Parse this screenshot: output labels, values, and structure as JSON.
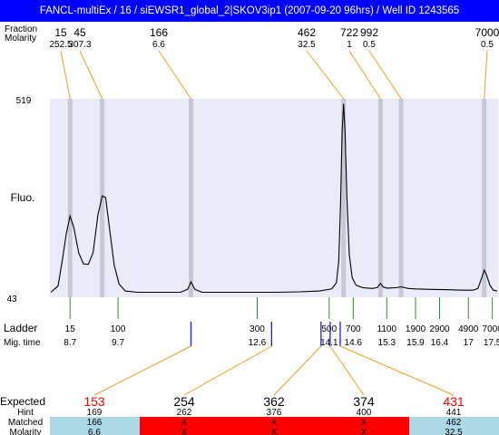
{
  "header": {
    "title": "FANCL-multiEx / 16 / siEWSR1_global_2|SKOV3ip1 (2007-09-20 96hrs) / Well ID 1243565",
    "row1_label": "Fraction",
    "row2_label": "Molarity"
  },
  "chart_data": {
    "type": "line",
    "ylabel": "Fluo.",
    "ylim": [
      43,
      519
    ],
    "ytick_labels": [
      "519",
      "43"
    ],
    "top_fragments": [
      {
        "size": "15",
        "molarity": "252.5"
      },
      {
        "size": "45",
        "molarity": "307.3"
      },
      {
        "size": "166",
        "molarity": "6.6"
      },
      {
        "size": "462",
        "molarity": "32.5"
      },
      {
        "size": "722",
        "molarity": "1"
      },
      {
        "size": "992",
        "molarity": "0.5"
      },
      {
        "size": "7000",
        "molarity": "0.5"
      }
    ],
    "ladder_label": "Ladder",
    "migtime_label": "Mig. time",
    "ladder": [
      {
        "size": "15",
        "time": "8.7"
      },
      {
        "size": "100",
        "time": "9.7"
      },
      {
        "size": "300",
        "time": "12.6"
      },
      {
        "size": "500",
        "time": "14.1"
      },
      {
        "size": "700",
        "time": "14.6"
      },
      {
        "size": "1100",
        "time": "15.3"
      },
      {
        "size": "1900",
        "time": "15.9"
      },
      {
        "size": "2900",
        "time": "16.4"
      },
      {
        "size": "4900",
        "time": "17"
      },
      {
        "size": "7000",
        "time": "17.5"
      }
    ],
    "trace": [
      {
        "x": 8.3,
        "y": 55
      },
      {
        "x": 8.45,
        "y": 70
      },
      {
        "x": 8.55,
        "y": 140
      },
      {
        "x": 8.62,
        "y": 195
      },
      {
        "x": 8.7,
        "y": 238
      },
      {
        "x": 8.78,
        "y": 210
      },
      {
        "x": 8.88,
        "y": 150
      },
      {
        "x": 8.98,
        "y": 123
      },
      {
        "x": 9.08,
        "y": 122
      },
      {
        "x": 9.18,
        "y": 150
      },
      {
        "x": 9.28,
        "y": 240
      },
      {
        "x": 9.37,
        "y": 286
      },
      {
        "x": 9.44,
        "y": 282
      },
      {
        "x": 9.52,
        "y": 210
      },
      {
        "x": 9.62,
        "y": 120
      },
      {
        "x": 9.72,
        "y": 75
      },
      {
        "x": 9.85,
        "y": 58
      },
      {
        "x": 10.1,
        "y": 55
      },
      {
        "x": 10.6,
        "y": 55
      },
      {
        "x": 11.0,
        "y": 55
      },
      {
        "x": 11.15,
        "y": 62
      },
      {
        "x": 11.22,
        "y": 80
      },
      {
        "x": 11.3,
        "y": 62
      },
      {
        "x": 11.45,
        "y": 55
      },
      {
        "x": 12.0,
        "y": 55
      },
      {
        "x": 13.0,
        "y": 55
      },
      {
        "x": 13.5,
        "y": 56
      },
      {
        "x": 13.9,
        "y": 58
      },
      {
        "x": 14.15,
        "y": 63
      },
      {
        "x": 14.25,
        "y": 78
      },
      {
        "x": 14.3,
        "y": 130
      },
      {
        "x": 14.34,
        "y": 280
      },
      {
        "x": 14.37,
        "y": 440
      },
      {
        "x": 14.4,
        "y": 507
      },
      {
        "x": 14.43,
        "y": 440
      },
      {
        "x": 14.47,
        "y": 280
      },
      {
        "x": 14.52,
        "y": 145
      },
      {
        "x": 14.58,
        "y": 90
      },
      {
        "x": 14.66,
        "y": 72
      },
      {
        "x": 14.8,
        "y": 66
      },
      {
        "x": 15.0,
        "y": 64
      },
      {
        "x": 15.1,
        "y": 66
      },
      {
        "x": 15.17,
        "y": 76
      },
      {
        "x": 15.22,
        "y": 68
      },
      {
        "x": 15.3,
        "y": 65
      },
      {
        "x": 15.5,
        "y": 66
      },
      {
        "x": 15.6,
        "y": 68
      },
      {
        "x": 15.75,
        "y": 64
      },
      {
        "x": 15.9,
        "y": 63
      },
      {
        "x": 16.2,
        "y": 62
      },
      {
        "x": 16.6,
        "y": 61
      },
      {
        "x": 16.9,
        "y": 60
      },
      {
        "x": 17.1,
        "y": 60
      },
      {
        "x": 17.2,
        "y": 64
      },
      {
        "x": 17.28,
        "y": 90
      },
      {
        "x": 17.33,
        "y": 108
      },
      {
        "x": 17.38,
        "y": 96
      },
      {
        "x": 17.45,
        "y": 72
      },
      {
        "x": 17.52,
        "y": 60
      },
      {
        "x": 17.6,
        "y": 58
      }
    ],
    "gray_bands_time": [
      8.7,
      9.37,
      11.22,
      14.4,
      15.17,
      15.6,
      17.33
    ],
    "ladder_times_numeric": [
      8.7,
      9.7,
      12.6,
      14.1,
      14.6,
      15.3,
      15.9,
      16.4,
      17.0,
      17.5
    ],
    "time_range": [
      8.28,
      17.62
    ],
    "expected_marker_times": [
      11.22,
      12.9,
      13.93,
      14.12,
      14.33
    ],
    "bottom": {
      "expected_label": "Expected",
      "hint_label": "Hint",
      "matched_label": "Matched",
      "molarity_label": "Molarity",
      "columns": [
        {
          "expected": "153",
          "hint": "169",
          "matched": "166",
          "molarity": "6.6",
          "status": "match"
        },
        {
          "expected": "254",
          "hint": "262",
          "matched": "X",
          "molarity": "X",
          "status": "missing"
        },
        {
          "expected": "362",
          "hint": "376",
          "matched": "X",
          "molarity": "X",
          "status": "missing"
        },
        {
          "expected": "374",
          "hint": "400",
          "matched": "X",
          "molarity": "X",
          "status": "missing"
        },
        {
          "expected": "431",
          "hint": "441",
          "matched": "462",
          "molarity": "32.5",
          "status": "match"
        }
      ]
    },
    "colors": {
      "title_bg": "#0000ff",
      "plot_bg": "#eaeaf8",
      "band": "#c8c8d4",
      "connector": "#f0a020",
      "ladder_tick": "#2e8b2e",
      "expected_tick": "#1a1aff",
      "expected_red": "#ff0000",
      "match_bg": "#add8e6",
      "missing_bg": "#ff0000"
    }
  }
}
